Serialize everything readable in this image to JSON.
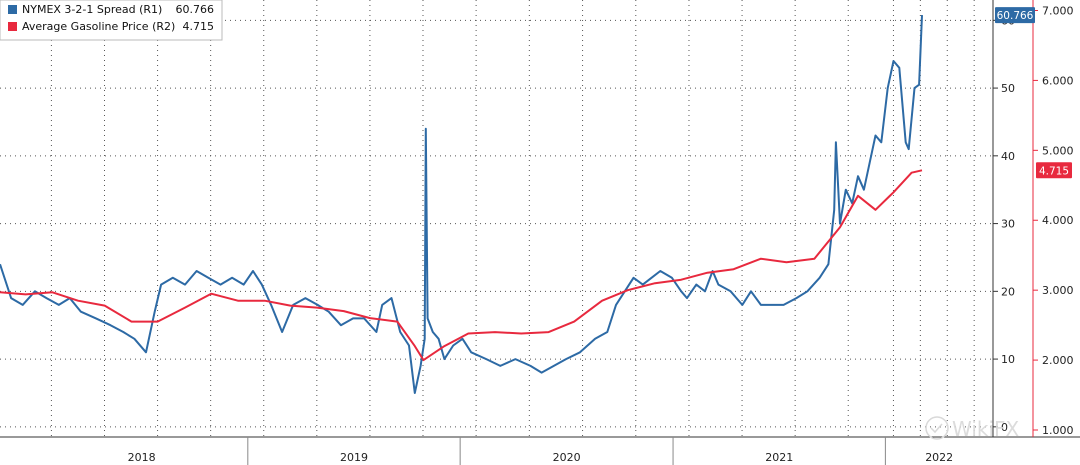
{
  "chart_data": {
    "type": "line",
    "x_range": [
      "2017-11-01",
      "2022-07-05"
    ],
    "x_ticks": [
      {
        "label": "2018",
        "start": "2018-01-01",
        "end": "2019-01-01"
      },
      {
        "label": "2019",
        "start": "2019-01-01",
        "end": "2020-01-01"
      },
      {
        "label": "2020",
        "start": "2020-01-01",
        "end": "2021-01-01"
      },
      {
        "label": "2021",
        "start": "2021-01-01",
        "end": "2022-01-01"
      },
      {
        "label": "2022",
        "start": "2022-01-01",
        "end": "2022-07-05"
      }
    ],
    "y_left_hidden": true,
    "y_right1": {
      "range": [
        -1.5,
        63
      ],
      "ticks": [
        0,
        10,
        20,
        30,
        40,
        50,
        60
      ]
    },
    "y_right2": {
      "range": [
        0.9,
        7.15
      ],
      "ticks": [
        "1.000",
        "2.000",
        "3.000",
        "4.000",
        "5.000",
        "6.000",
        "7.000"
      ]
    },
    "grid": true,
    "legend_position": "top-left",
    "series": [
      {
        "name": "NYMEX 3-2-1 Spread (R1)",
        "axis": "R1",
        "color": "#2d6aa5",
        "last_label": "60.766",
        "points": [
          [
            "2017-11-01",
            24
          ],
          [
            "2017-11-20",
            19
          ],
          [
            "2017-12-10",
            18
          ],
          [
            "2017-12-31",
            20
          ],
          [
            "2018-01-20",
            19
          ],
          [
            "2018-02-10",
            18
          ],
          [
            "2018-03-01",
            19
          ],
          [
            "2018-03-20",
            17
          ],
          [
            "2018-04-15",
            16
          ],
          [
            "2018-05-10",
            15
          ],
          [
            "2018-06-01",
            14
          ],
          [
            "2018-06-20",
            13
          ],
          [
            "2018-07-10",
            11
          ],
          [
            "2018-07-25",
            17
          ],
          [
            "2018-08-05",
            21
          ],
          [
            "2018-08-25",
            22
          ],
          [
            "2018-09-15",
            21
          ],
          [
            "2018-10-05",
            23
          ],
          [
            "2018-10-25",
            22
          ],
          [
            "2018-11-15",
            21
          ],
          [
            "2018-12-05",
            22
          ],
          [
            "2018-12-25",
            21
          ],
          [
            "2019-01-10",
            23
          ],
          [
            "2019-01-25",
            21
          ],
          [
            "2019-02-10",
            18
          ],
          [
            "2019-03-01",
            14
          ],
          [
            "2019-03-20",
            18
          ],
          [
            "2019-04-10",
            19
          ],
          [
            "2019-05-01",
            18
          ],
          [
            "2019-05-20",
            17
          ],
          [
            "2019-06-10",
            15
          ],
          [
            "2019-07-01",
            16
          ],
          [
            "2019-07-20",
            16
          ],
          [
            "2019-08-10",
            14
          ],
          [
            "2019-08-20",
            18
          ],
          [
            "2019-09-05",
            19
          ],
          [
            "2019-09-20",
            14
          ],
          [
            "2019-10-05",
            12
          ],
          [
            "2019-10-15",
            5
          ],
          [
            "2019-10-25",
            9
          ],
          [
            "2019-11-01",
            13
          ],
          [
            "2019-11-03",
            44
          ],
          [
            "2019-11-06",
            16
          ],
          [
            "2019-11-15",
            14
          ],
          [
            "2019-11-25",
            13
          ],
          [
            "2019-12-05",
            10
          ],
          [
            "2019-12-20",
            12
          ],
          [
            "2020-01-05",
            13
          ],
          [
            "2020-01-20",
            11
          ],
          [
            "2020-02-15",
            10
          ],
          [
            "2020-03-10",
            9
          ],
          [
            "2020-04-05",
            10
          ],
          [
            "2020-05-01",
            9
          ],
          [
            "2020-05-20",
            8
          ],
          [
            "2020-06-10",
            9
          ],
          [
            "2020-07-01",
            10
          ],
          [
            "2020-07-25",
            11
          ],
          [
            "2020-08-20",
            13
          ],
          [
            "2020-09-10",
            14
          ],
          [
            "2020-09-25",
            18
          ],
          [
            "2020-10-10",
            20
          ],
          [
            "2020-10-25",
            22
          ],
          [
            "2020-11-10",
            21
          ],
          [
            "2020-11-25",
            22
          ],
          [
            "2020-12-10",
            23
          ],
          [
            "2020-12-30",
            22
          ],
          [
            "2021-01-15",
            20
          ],
          [
            "2021-01-25",
            19
          ],
          [
            "2021-02-10",
            21
          ],
          [
            "2021-02-25",
            20
          ],
          [
            "2021-03-10",
            23
          ],
          [
            "2021-03-20",
            21
          ],
          [
            "2021-04-10",
            20
          ],
          [
            "2021-04-30",
            18
          ],
          [
            "2021-05-15",
            20
          ],
          [
            "2021-06-01",
            18
          ],
          [
            "2021-06-20",
            18
          ],
          [
            "2021-07-10",
            18
          ],
          [
            "2021-08-01",
            19
          ],
          [
            "2021-08-20",
            20
          ],
          [
            "2021-09-10",
            22
          ],
          [
            "2021-09-25",
            24
          ],
          [
            "2021-10-05",
            32
          ],
          [
            "2021-10-08",
            42
          ],
          [
            "2021-10-15",
            30
          ],
          [
            "2021-10-25",
            35
          ],
          [
            "2021-11-05",
            33
          ],
          [
            "2021-11-15",
            37
          ],
          [
            "2021-11-25",
            35
          ],
          [
            "2021-12-05",
            39
          ],
          [
            "2021-12-15",
            43
          ],
          [
            "2021-12-25",
            42
          ],
          [
            "2022-01-05",
            50
          ],
          [
            "2022-01-15",
            54
          ],
          [
            "2022-01-25",
            53
          ],
          [
            "2022-02-05",
            42
          ],
          [
            "2022-02-10",
            41
          ],
          [
            "2022-02-20",
            50
          ],
          [
            "2022-02-28",
            50.5
          ],
          [
            "2022-03-05",
            60.766
          ]
        ]
      },
      {
        "name": "Average Gasoline Price (R2)",
        "axis": "R2",
        "color": "#e8293e",
        "last_label": "4.715",
        "points": [
          [
            "2017-11-01",
            2.97
          ],
          [
            "2017-12-15",
            2.94
          ],
          [
            "2018-01-30",
            2.97
          ],
          [
            "2018-03-15",
            2.85
          ],
          [
            "2018-04-30",
            2.78
          ],
          [
            "2018-06-15",
            2.55
          ],
          [
            "2018-07-30",
            2.55
          ],
          [
            "2018-09-15",
            2.75
          ],
          [
            "2018-10-30",
            2.95
          ],
          [
            "2018-12-15",
            2.85
          ],
          [
            "2019-01-30",
            2.85
          ],
          [
            "2019-03-15",
            2.78
          ],
          [
            "2019-04-30",
            2.75
          ],
          [
            "2019-06-15",
            2.7
          ],
          [
            "2019-07-30",
            2.6
          ],
          [
            "2019-09-15",
            2.55
          ],
          [
            "2019-10-15",
            2.2
          ],
          [
            "2019-10-30",
            2.0
          ],
          [
            "2019-12-05",
            2.2
          ],
          [
            "2020-01-15",
            2.38
          ],
          [
            "2020-03-01",
            2.4
          ],
          [
            "2020-04-15",
            2.38
          ],
          [
            "2020-06-01",
            2.4
          ],
          [
            "2020-07-15",
            2.55
          ],
          [
            "2020-09-01",
            2.85
          ],
          [
            "2020-10-15",
            3.0
          ],
          [
            "2020-12-01",
            3.1
          ],
          [
            "2021-01-15",
            3.15
          ],
          [
            "2021-03-01",
            3.25
          ],
          [
            "2021-04-15",
            3.3
          ],
          [
            "2021-06-01",
            3.45
          ],
          [
            "2021-07-15",
            3.4
          ],
          [
            "2021-09-01",
            3.45
          ],
          [
            "2021-10-15",
            3.9
          ],
          [
            "2021-11-15",
            4.35
          ],
          [
            "2021-12-15",
            4.15
          ],
          [
            "2022-01-15",
            4.4
          ],
          [
            "2022-02-15",
            4.68
          ],
          [
            "2022-03-05",
            4.715
          ]
        ]
      }
    ]
  },
  "watermark": "WikiFX"
}
